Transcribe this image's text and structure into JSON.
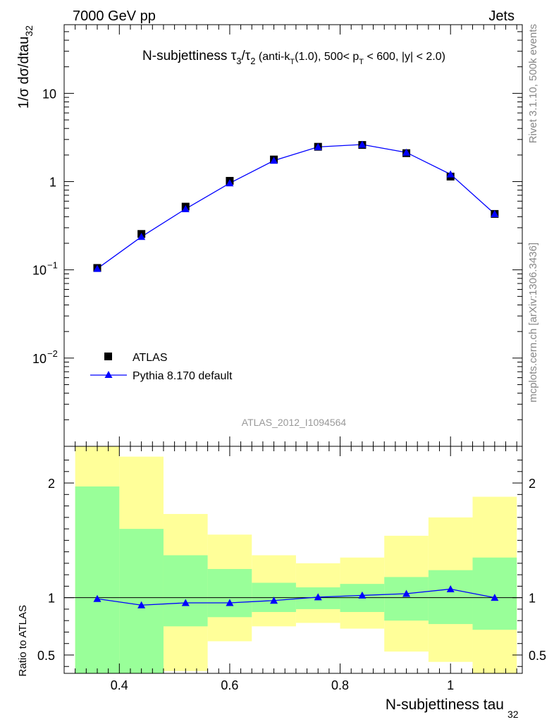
{
  "header": {
    "left": "7000 GeV pp",
    "right": "Jets"
  },
  "side_labels": {
    "rivet": "Rivet 3.1.10,  500k events",
    "mcplots": "mcplots.cern.ch [arXiv:1306.3436]"
  },
  "watermark": "ATLAS_2012_I1094564",
  "colors": {
    "data": "#000000",
    "mc": "#0000ff",
    "band_inner": "#99ff99",
    "band_outer": "#ffff99"
  },
  "chart_data": [
    {
      "type": "scatter",
      "title": "N-subjettiness τ3/τ2 (anti-kT(1.0), 500< pT < 600, |y| < 2.0)",
      "ylabel": "1/σ dσ/dtau32",
      "yscale": "log",
      "ylim": [
        0.001,
        60
      ],
      "xlim": [
        0.3,
        1.13
      ],
      "ytick_labels": [
        "10^-2",
        "10^-1",
        "1",
        "10"
      ],
      "x_bin_edges": [
        0.32,
        0.4,
        0.48,
        0.56,
        0.64,
        0.72,
        0.8,
        0.88,
        0.96,
        1.04,
        1.12
      ],
      "x": [
        0.36,
        0.44,
        0.52,
        0.6,
        0.68,
        0.76,
        0.84,
        0.92,
        1.0,
        1.08
      ],
      "series": [
        {
          "name": "ATLAS",
          "values": [
            0.105,
            0.255,
            0.52,
            1.02,
            1.78,
            2.48,
            2.6,
            2.1,
            1.14,
            0.43
          ]
        },
        {
          "name": "Pythia 8.170 default",
          "values": [
            0.103,
            0.237,
            0.49,
            0.96,
            1.73,
            2.47,
            2.63,
            2.14,
            1.21,
            0.43
          ]
        }
      ],
      "legend_position": "lower-left"
    },
    {
      "type": "line",
      "ylabel": "Ratio to ATLAS",
      "xlabel": "N-subjettiness tau32",
      "ylim": [
        0.34,
        2.32
      ],
      "xlim": [
        0.3,
        1.13
      ],
      "ytick_labels": [
        "0.5",
        "1",
        "2"
      ],
      "xtick_labels": [
        "0.4",
        "0.6",
        "0.8",
        "1"
      ],
      "x": [
        0.36,
        0.44,
        0.52,
        0.6,
        0.68,
        0.76,
        0.84,
        0.92,
        1.0,
        1.08
      ],
      "series": [
        {
          "name": "Pythia 8.170 default",
          "values": [
            0.99,
            0.935,
            0.955,
            0.955,
            0.975,
            1.005,
            1.02,
            1.035,
            1.075,
            1.0
          ]
        }
      ],
      "band_inner": {
        "low": [
          0.3,
          0.3,
          0.75,
          0.83,
          0.875,
          0.9,
          0.875,
          0.8,
          0.77,
          0.72
        ],
        "high": [
          1.97,
          1.6,
          1.37,
          1.25,
          1.13,
          1.09,
          1.12,
          1.18,
          1.24,
          1.35
        ]
      },
      "band_outer": {
        "low": [
          0.3,
          0.43,
          0.36,
          0.62,
          0.75,
          0.78,
          0.73,
          0.53,
          0.44,
          0.3
        ],
        "high": [
          2.6,
          2.23,
          1.73,
          1.55,
          1.37,
          1.3,
          1.35,
          1.54,
          1.7,
          1.88
        ]
      }
    }
  ]
}
